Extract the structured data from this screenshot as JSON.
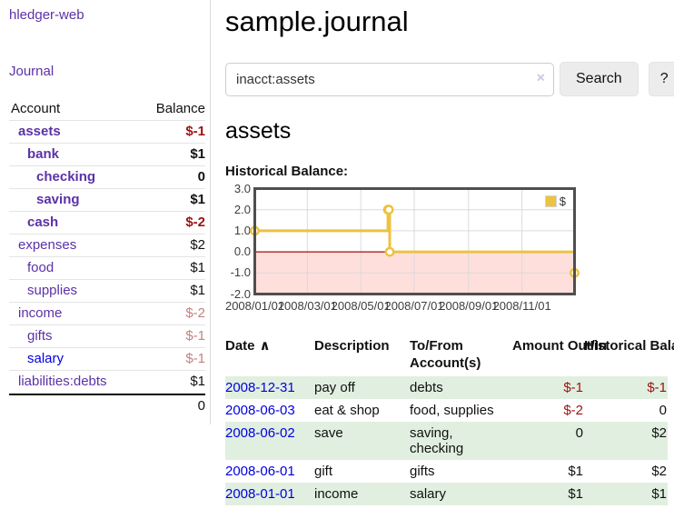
{
  "app": {
    "brand": "hledger-web",
    "nav_journal": "Journal"
  },
  "colors": {
    "link_purple": "#5c31a8",
    "link_blue": "#0000e2",
    "negative_strong": "#9e1111",
    "negative_soft": "#c48181",
    "row_stripe_green": "#e1efe0",
    "chart_line_gold": "#edc240",
    "chart_negative_region": "#ffdfdc",
    "chart_zero_line": "#9e0e0e"
  },
  "sidebar": {
    "headers": {
      "account": "Account",
      "balance": "Balance"
    },
    "accounts": [
      {
        "name": "assets",
        "depth": 1,
        "bold": true,
        "balance": "$-1",
        "balance_style": "neg-strong",
        "link_style": "purple"
      },
      {
        "name": "bank",
        "depth": 2,
        "bold": true,
        "balance": "$1",
        "balance_style": "plain",
        "link_style": "purple"
      },
      {
        "name": "checking",
        "depth": 3,
        "bold": true,
        "balance": "0",
        "balance_style": "plain",
        "link_style": "purple"
      },
      {
        "name": "saving",
        "depth": 3,
        "bold": true,
        "balance": "$1",
        "balance_style": "plain",
        "link_style": "purple"
      },
      {
        "name": "cash",
        "depth": 2,
        "bold": true,
        "balance": "$-2",
        "balance_style": "neg-strong",
        "link_style": "purple"
      },
      {
        "name": "expenses",
        "depth": 1,
        "bold": false,
        "balance": "$2",
        "balance_style": "plain",
        "link_style": "purple"
      },
      {
        "name": "food",
        "depth": 2,
        "bold": false,
        "balance": "$1",
        "balance_style": "plain",
        "link_style": "purple"
      },
      {
        "name": "supplies",
        "depth": 2,
        "bold": false,
        "balance": "$1",
        "balance_style": "plain",
        "link_style": "purple"
      },
      {
        "name": "income",
        "depth": 1,
        "bold": false,
        "balance": "$-2",
        "balance_style": "neg-soft",
        "link_style": "purple"
      },
      {
        "name": "gifts",
        "depth": 2,
        "bold": false,
        "balance": "$-1",
        "balance_style": "neg-soft",
        "link_style": "purple"
      },
      {
        "name": "salary",
        "depth": 2,
        "bold": false,
        "balance": "$-1",
        "balance_style": "neg-soft",
        "link_style": "blue"
      },
      {
        "name": "liabilities:debts",
        "depth": 1,
        "bold": false,
        "balance": "$1",
        "balance_style": "plain",
        "link_style": "purple"
      }
    ],
    "total": "0"
  },
  "header": {
    "title": "sample.journal"
  },
  "search": {
    "value": "inacct:assets",
    "clear_icon": "×",
    "button_label": "Search",
    "help_label": "?"
  },
  "account_page": {
    "heading": "assets",
    "chart_label": "Historical Balance:"
  },
  "chart_data": {
    "type": "line",
    "title": "Historical Balance",
    "steps": true,
    "series": [
      {
        "name": "$",
        "color": "#edc240",
        "points": [
          {
            "date": "2008-01-01",
            "value": 1
          },
          {
            "date": "2008-06-01",
            "value": 2
          },
          {
            "date": "2008-06-02",
            "value": 2
          },
          {
            "date": "2008-06-03",
            "value": 0
          },
          {
            "date": "2008-12-31",
            "value": -1
          }
        ]
      }
    ],
    "x_range": [
      "2008-01-01",
      "2008-12-31"
    ],
    "x_ticks": [
      "2008/01/01",
      "2008/03/01",
      "2008/05/01",
      "2008/07/01",
      "2008/09/01",
      "2008/11/01"
    ],
    "y_ticks": [
      3.0,
      2.0,
      1.0,
      0.0,
      -1.0,
      -2.0
    ],
    "ylim": [
      -2,
      3
    ],
    "grid": true,
    "legend_position": "top-right",
    "legend_label": "$"
  },
  "journal": {
    "headers": {
      "date": "Date",
      "sort_icon": "∧",
      "description": "Description",
      "accounts": "To/From Account(s)",
      "amount": "Amount Out/In",
      "balance": "Historical Balance"
    },
    "rows": [
      {
        "date": "2008-12-31",
        "description": "pay off",
        "accounts": "debts",
        "amount": "$-1",
        "balance": "$-1"
      },
      {
        "date": "2008-06-03",
        "description": "eat & shop",
        "accounts": "food, supplies",
        "amount": "$-2",
        "balance": "0"
      },
      {
        "date": "2008-06-02",
        "description": "save",
        "accounts": "saving, checking",
        "amount": "0",
        "balance": "$2"
      },
      {
        "date": "2008-06-01",
        "description": "gift",
        "accounts": "gifts",
        "amount": "$1",
        "balance": "$2"
      },
      {
        "date": "2008-01-01",
        "description": "income",
        "accounts": "salary",
        "amount": "$1",
        "balance": "$1"
      }
    ]
  }
}
